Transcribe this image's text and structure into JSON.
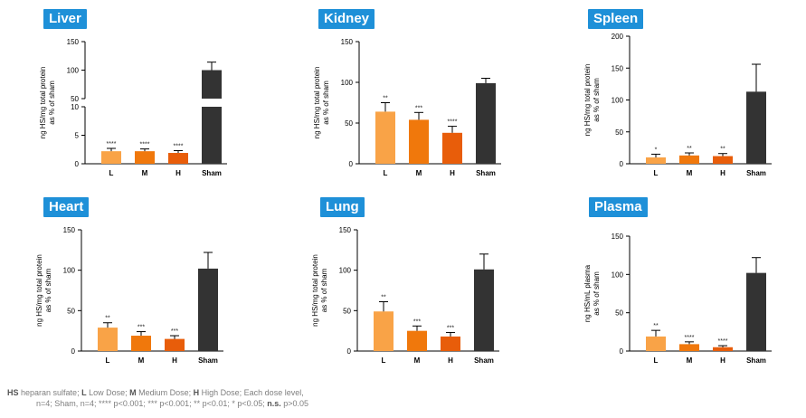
{
  "colors": {
    "L": "#f9a347",
    "M": "#f0780c",
    "H": "#e85d0a",
    "Sham": "#333333",
    "title_bg": "#1e90d8",
    "title_text": "#ffffff"
  },
  "chart_data": [
    {
      "type": "bar",
      "title": "Liver",
      "ylabel": [
        "ng HS/mg total protein",
        "as % of sham"
      ],
      "categories": [
        "L",
        "M",
        "H",
        "Sham"
      ],
      "values": [
        2.2,
        2.2,
        1.9,
        100
      ],
      "errors": [
        0.5,
        0.4,
        0.4,
        14
      ],
      "significance": [
        "****",
        "****",
        "****",
        ""
      ],
      "broken_axis": true,
      "lower_segment": {
        "ylim": [
          0,
          10
        ],
        "ticks": [
          0,
          5,
          10
        ]
      },
      "upper_segment": {
        "ylim": [
          50,
          150
        ],
        "ticks": [
          50,
          100,
          150
        ]
      },
      "ylim": [
        0,
        150
      ]
    },
    {
      "type": "bar",
      "title": "Kidney",
      "ylabel": [
        "ng HS/mg total protein",
        "as % of sham"
      ],
      "categories": [
        "L",
        "M",
        "H",
        "Sham"
      ],
      "values": [
        64,
        54,
        38,
        99
      ],
      "errors": [
        11,
        9,
        8,
        6
      ],
      "significance": [
        "**",
        "***",
        "****",
        ""
      ],
      "ylim": [
        0,
        150
      ],
      "ticks": [
        0,
        50,
        100,
        150
      ]
    },
    {
      "type": "bar",
      "title": "Spleen",
      "ylabel": [
        "ng HS/mg total protein",
        "as % of sham"
      ],
      "categories": [
        "L",
        "M",
        "H",
        "Sham"
      ],
      "values": [
        10,
        13,
        12,
        113
      ],
      "errors": [
        5,
        4,
        4,
        43
      ],
      "significance": [
        "*",
        "**",
        "**",
        ""
      ],
      "ylim": [
        0,
        200
      ],
      "ticks": [
        0,
        50,
        100,
        150,
        200
      ]
    },
    {
      "type": "bar",
      "title": "Heart",
      "ylabel": [
        "ng HS/mg total protein",
        "as % of sham"
      ],
      "categories": [
        "L",
        "M",
        "H",
        "Sham"
      ],
      "values": [
        29,
        19,
        15,
        102
      ],
      "errors": [
        6,
        5,
        4,
        20
      ],
      "significance": [
        "**",
        "***",
        "***",
        ""
      ],
      "ylim": [
        0,
        150
      ],
      "ticks": [
        0,
        50,
        100,
        150
      ]
    },
    {
      "type": "bar",
      "title": "Lung",
      "ylabel": [
        "ng HS/mg total protein",
        "as % of sham"
      ],
      "categories": [
        "L",
        "M",
        "H",
        "Sham"
      ],
      "values": [
        49,
        25,
        18,
        101
      ],
      "errors": [
        12,
        6,
        5,
        19
      ],
      "significance": [
        "**",
        "***",
        "***",
        ""
      ],
      "ylim": [
        0,
        150
      ],
      "ticks": [
        0,
        50,
        100,
        150
      ]
    },
    {
      "type": "bar",
      "title": "Plasma",
      "ylabel": [
        "ng HS/mL plasma",
        "as % of sham"
      ],
      "categories": [
        "L",
        "M",
        "H",
        "Sham"
      ],
      "values": [
        19,
        9,
        5,
        102
      ],
      "errors": [
        8,
        3,
        2,
        20
      ],
      "significance": [
        "**",
        "****",
        "****",
        ""
      ],
      "ylim": [
        0,
        150
      ],
      "ticks": [
        0,
        50,
        100,
        150
      ]
    }
  ],
  "footnote": {
    "abbr_hs": "HS",
    "hs_text": " heparan sulfate; ",
    "abbr_l": "L",
    "l_text": " Low Dose; ",
    "abbr_m": "M",
    "m_text": " Medium Dose; ",
    "abbr_h": "H",
    "h_text": " High Dose; Each dose level,",
    "line2": "n=4; Sham, n=4; **** p<0.001; *** p<0.001; ** p<0.01; * p<0.05; ",
    "ns_label": "n.s.",
    "ns_text": " p>0.05"
  }
}
